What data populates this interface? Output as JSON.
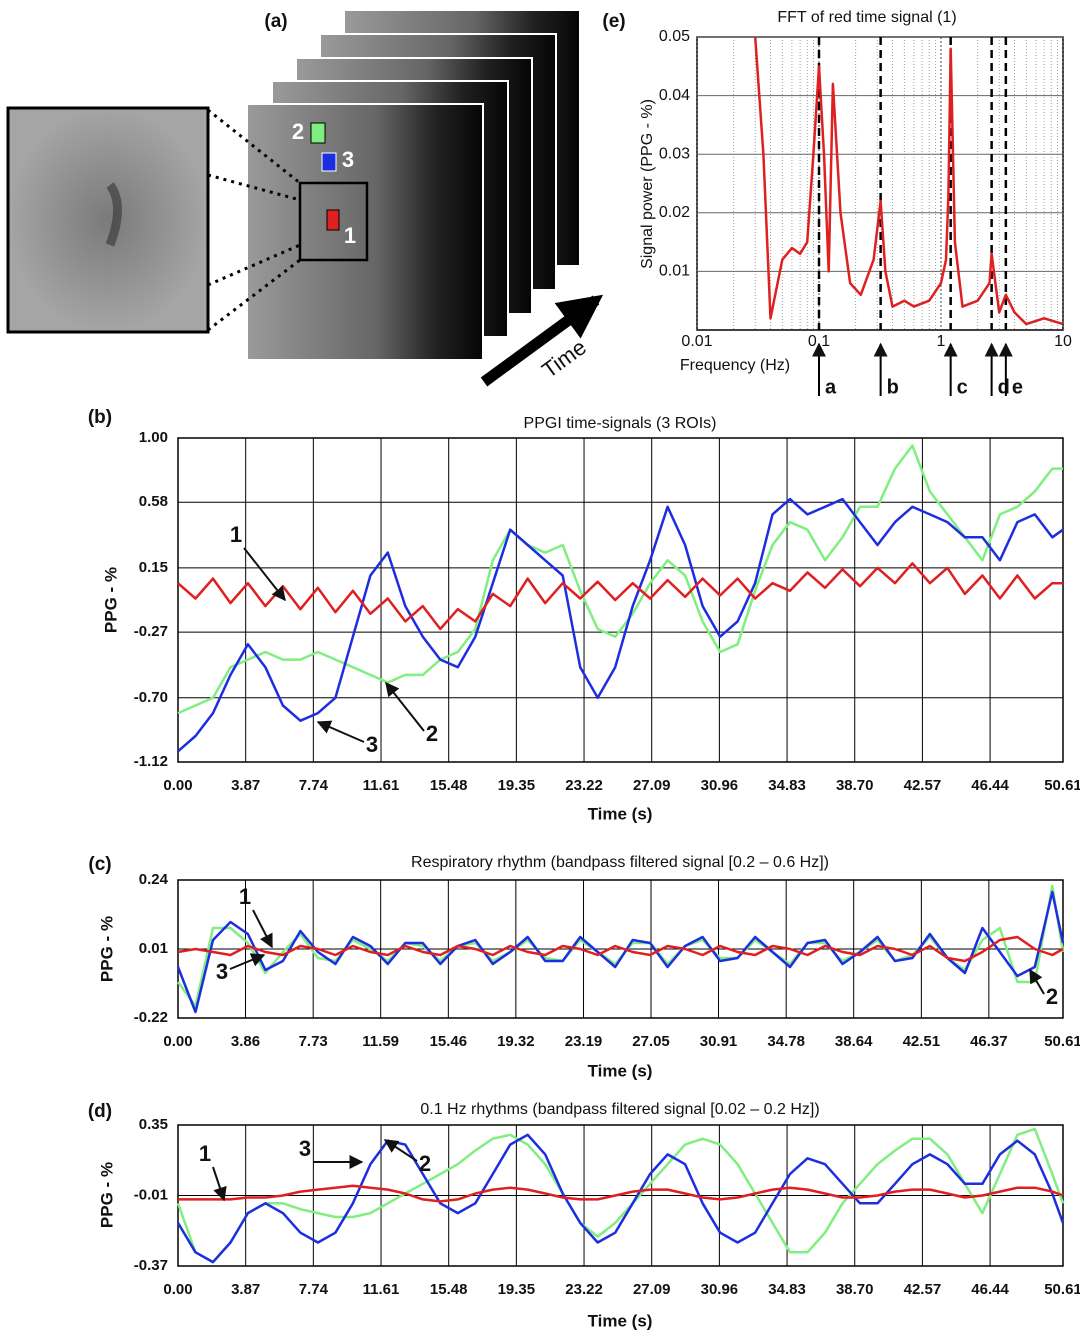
{
  "image_panel": {
    "label": "(a)",
    "roi_labels": [
      "2",
      "3",
      "1"
    ],
    "time_label": "Time"
  },
  "chart_data": [
    {
      "type": "line",
      "panel_label": "(e)",
      "title": "FFT of red time signal (1)",
      "x_label": "Frequency (Hz)",
      "y_label": "Signal power (PPG - %)",
      "log_x": true,
      "grid": true,
      "xlim": [
        0.01,
        10
      ],
      "xticks": [
        0.01,
        0.1,
        1,
        10
      ],
      "ylim": [
        0,
        0.05
      ],
      "yticks": [
        0.01,
        0.02,
        0.03,
        0.04,
        0.05
      ],
      "x": [
        0.03,
        0.035,
        0.04,
        0.05,
        0.06,
        0.07,
        0.08,
        0.09,
        0.1,
        0.11,
        0.12,
        0.13,
        0.15,
        0.18,
        0.22,
        0.28,
        0.32,
        0.35,
        0.4,
        0.5,
        0.6,
        0.8,
        1.0,
        1.1,
        1.15,
        1.2,
        1.3,
        1.5,
        2.0,
        2.5,
        2.6,
        3.0,
        3.4,
        4,
        5,
        7,
        10
      ],
      "series": [
        {
          "name": "1",
          "color": "#e02020",
          "values": [
            0.05,
            0.03,
            0.002,
            0.012,
            0.014,
            0.013,
            0.015,
            0.03,
            0.045,
            0.03,
            0.01,
            0.042,
            0.02,
            0.008,
            0.006,
            0.012,
            0.022,
            0.01,
            0.004,
            0.005,
            0.004,
            0.005,
            0.008,
            0.012,
            0.023,
            0.048,
            0.015,
            0.004,
            0.005,
            0.008,
            0.013,
            0.003,
            0.006,
            0.003,
            0.001,
            0.002,
            0.001
          ]
        }
      ],
      "markers": [
        {
          "label": "a",
          "x": 0.1
        },
        {
          "label": "b",
          "x": 0.32
        },
        {
          "label": "c",
          "x": 1.2
        },
        {
          "label": "d",
          "x": 2.6
        },
        {
          "label": "e",
          "x": 3.4
        }
      ]
    },
    {
      "type": "line",
      "panel_label": "(b)",
      "title": "PPGI time-signals (3 ROIs)",
      "x_label": "Time (s)",
      "y_label": "PPG - %",
      "grid": true,
      "xlim": [
        0,
        50.61
      ],
      "xticks": [
        {
          "value": 0,
          "label": "0.00"
        },
        3.87,
        7.74,
        11.61,
        15.48,
        19.35,
        23.22,
        27.09,
        30.96,
        34.83,
        {
          "value": 38.7,
          "label": "38.70"
        },
        42.57,
        46.44,
        50.61
      ],
      "ylim": [
        -1.12,
        1.0
      ],
      "yticks": [
        -1.12,
        {
          "value": -0.7,
          "label": "-0.70"
        },
        -0.27,
        0.15,
        0.58,
        {
          "value": 1,
          "label": "1.00"
        }
      ],
      "x": [
        0,
        1,
        2,
        3,
        4,
        5,
        6,
        7,
        8,
        9,
        10,
        11,
        12,
        13,
        14,
        15,
        16,
        17,
        18,
        19,
        20,
        21,
        22,
        23,
        24,
        25,
        26,
        27,
        28,
        29,
        30,
        31,
        32,
        33,
        34,
        35,
        36,
        37,
        38,
        39,
        40,
        41,
        42,
        43,
        44,
        45,
        46,
        47,
        48,
        49,
        50,
        50.61
      ],
      "series": [
        {
          "name": "2",
          "color": "#80ee80",
          "values": [
            -0.8,
            -0.75,
            -0.7,
            -0.5,
            -0.45,
            -0.4,
            -0.45,
            -0.45,
            -0.4,
            -0.45,
            -0.5,
            -0.55,
            -0.6,
            -0.55,
            -0.55,
            -0.45,
            -0.4,
            -0.25,
            0.2,
            0.4,
            0.3,
            0.25,
            0.3,
            0.0,
            -0.25,
            -0.3,
            -0.15,
            0.05,
            0.2,
            0.1,
            -0.2,
            -0.4,
            -0.35,
            0.0,
            0.3,
            0.45,
            0.4,
            0.2,
            0.35,
            0.55,
            0.55,
            0.8,
            0.95,
            0.65,
            0.5,
            0.35,
            0.2,
            0.5,
            0.55,
            0.65,
            0.8,
            0.8
          ]
        },
        {
          "name": "3",
          "color": "#1c2ee0",
          "values": [
            -1.05,
            -0.95,
            -0.8,
            -0.55,
            -0.35,
            -0.5,
            -0.75,
            -0.85,
            -0.8,
            -0.7,
            -0.3,
            0.1,
            0.25,
            -0.1,
            -0.3,
            -0.45,
            -0.5,
            -0.3,
            0.05,
            0.4,
            0.3,
            0.2,
            0.1,
            -0.5,
            -0.7,
            -0.5,
            -0.1,
            0.2,
            0.55,
            0.3,
            -0.1,
            -0.3,
            -0.2,
            0.05,
            0.5,
            0.6,
            0.5,
            0.55,
            0.6,
            0.45,
            0.3,
            0.45,
            0.55,
            0.5,
            0.45,
            0.35,
            0.35,
            0.2,
            0.45,
            0.5,
            0.35,
            0.4
          ]
        },
        {
          "name": "1",
          "color": "#e02020",
          "values": [
            0.05,
            -0.05,
            0.08,
            -0.08,
            0.05,
            -0.1,
            0.03,
            -0.12,
            0.02,
            -0.14,
            0.0,
            -0.15,
            -0.05,
            -0.2,
            -0.1,
            -0.25,
            -0.12,
            -0.2,
            -0.02,
            -0.1,
            0.08,
            -0.08,
            0.05,
            -0.05,
            0.06,
            -0.06,
            0.05,
            -0.05,
            0.07,
            -0.04,
            0.08,
            -0.03,
            0.08,
            -0.05,
            0.05,
            0.0,
            0.12,
            0.02,
            0.14,
            0.03,
            0.15,
            0.05,
            0.18,
            0.05,
            0.15,
            -0.02,
            0.1,
            -0.05,
            0.1,
            -0.05,
            0.05,
            0.05
          ]
        }
      ],
      "annotations": [
        "1",
        "2",
        "3"
      ]
    },
    {
      "type": "line",
      "panel_label": "(c)",
      "title": "Respiratory rhythm (bandpass filtered signal [0.2 – 0.6 Hz])",
      "x_label": "Time (s)",
      "y_label": "PPG - %",
      "grid": true,
      "xlim": [
        0,
        50.61
      ],
      "xticks": [
        {
          "value": 0,
          "label": "0.00"
        },
        3.86,
        7.73,
        11.59,
        15.46,
        19.32,
        23.19,
        27.05,
        30.91,
        34.78,
        38.64,
        42.51,
        46.37,
        50.61
      ],
      "ylim": [
        -0.22,
        0.24
      ],
      "yticks": [
        -0.22,
        0.01,
        0.24
      ],
      "x": [
        0,
        1,
        2,
        3,
        4,
        5,
        6,
        7,
        8,
        9,
        10,
        11,
        12,
        13,
        14,
        15,
        16,
        17,
        18,
        19,
        20,
        21,
        22,
        23,
        24,
        25,
        26,
        27,
        28,
        29,
        30,
        31,
        32,
        33,
        34,
        35,
        36,
        37,
        38,
        39,
        40,
        41,
        42,
        43,
        44,
        45,
        46,
        47,
        48,
        49,
        50,
        50.61
      ],
      "series": [
        {
          "name": "2",
          "color": "#80ee80",
          "values": [
            -0.1,
            -0.18,
            0.08,
            0.08,
            0.03,
            -0.07,
            0.0,
            0.06,
            -0.02,
            -0.03,
            0.04,
            0.01,
            -0.03,
            0.03,
            0.02,
            -0.03,
            0.02,
            0.03,
            -0.03,
            0.0,
            0.04,
            -0.02,
            -0.03,
            0.04,
            0.0,
            -0.04,
            0.03,
            0.03,
            -0.04,
            0.02,
            0.04,
            -0.02,
            -0.02,
            0.04,
            0.0,
            -0.04,
            0.03,
            0.03,
            -0.03,
            0.0,
            0.04,
            -0.03,
            -0.01,
            0.05,
            -0.02,
            -0.06,
            0.04,
            0.08,
            -0.1,
            -0.1,
            0.22,
            0.0
          ]
        },
        {
          "name": "3",
          "color": "#1c2ee0",
          "values": [
            -0.05,
            -0.2,
            0.04,
            0.1,
            0.06,
            -0.06,
            -0.03,
            0.07,
            0.0,
            -0.04,
            0.05,
            0.02,
            -0.04,
            0.03,
            0.03,
            -0.04,
            0.02,
            0.04,
            -0.04,
            0.0,
            0.05,
            -0.03,
            -0.03,
            0.05,
            0.0,
            -0.05,
            0.04,
            0.03,
            -0.05,
            0.02,
            0.05,
            -0.03,
            -0.02,
            0.05,
            0.0,
            -0.05,
            0.03,
            0.04,
            -0.04,
            0.0,
            0.05,
            -0.03,
            -0.02,
            0.06,
            -0.02,
            -0.07,
            0.08,
            0.0,
            -0.08,
            -0.05,
            0.2,
            0.03
          ]
        },
        {
          "name": "1",
          "color": "#e02020",
          "values": [
            0.0,
            0.01,
            0.0,
            -0.01,
            0.02,
            0.0,
            -0.01,
            0.02,
            0.01,
            -0.01,
            0.02,
            0.0,
            -0.01,
            0.02,
            0.0,
            -0.01,
            0.02,
            0.01,
            -0.01,
            0.02,
            0.0,
            -0.01,
            0.02,
            0.01,
            -0.01,
            0.02,
            0.0,
            -0.01,
            0.02,
            0.01,
            -0.01,
            0.02,
            0.0,
            -0.01,
            0.02,
            0.01,
            -0.01,
            0.02,
            0.0,
            -0.01,
            0.02,
            0.01,
            -0.01,
            0.02,
            -0.02,
            -0.03,
            0.0,
            0.04,
            0.05,
            0.01,
            -0.01,
            0.01
          ]
        }
      ],
      "annotations": [
        "1",
        "3",
        "2"
      ]
    },
    {
      "type": "line",
      "panel_label": "(d)",
      "title": "0.1 Hz rhythms (bandpass filtered signal [0.02 – 0.2 Hz])",
      "x_label": "Time (s)",
      "y_label": "PPG - %",
      "grid": true,
      "xlim": [
        0,
        50.61
      ],
      "xticks": [
        {
          "value": 0,
          "label": "0.00"
        },
        3.87,
        7.74,
        11.61,
        15.48,
        19.35,
        23.22,
        27.09,
        30.96,
        34.83,
        {
          "value": 38.7,
          "label": "38.70"
        },
        42.57,
        46.44,
        50.61
      ],
      "ylim": [
        -0.37,
        0.35
      ],
      "yticks": [
        -0.37,
        -0.01,
        0.35
      ],
      "x": [
        0,
        1,
        2,
        3,
        4,
        5,
        6,
        7,
        8,
        9,
        10,
        11,
        12,
        13,
        14,
        15,
        16,
        17,
        18,
        19,
        20,
        21,
        22,
        23,
        24,
        25,
        26,
        27,
        28,
        29,
        30,
        31,
        32,
        33,
        34,
        35,
        36,
        37,
        38,
        39,
        40,
        41,
        42,
        43,
        44,
        45,
        46,
        47,
        48,
        49,
        50,
        50.61
      ],
      "series": [
        {
          "name": "2",
          "color": "#80ee80",
          "values": [
            -0.05,
            -0.3,
            -0.35,
            -0.25,
            -0.1,
            -0.05,
            -0.05,
            -0.08,
            -0.1,
            -0.12,
            -0.12,
            -0.1,
            -0.05,
            0.0,
            0.05,
            0.1,
            0.15,
            0.22,
            0.28,
            0.3,
            0.25,
            0.15,
            0.0,
            -0.15,
            -0.22,
            -0.15,
            -0.05,
            0.05,
            0.15,
            0.25,
            0.28,
            0.25,
            0.15,
            0.0,
            -0.15,
            -0.3,
            -0.3,
            -0.2,
            -0.05,
            0.05,
            0.15,
            0.22,
            0.28,
            0.28,
            0.2,
            0.05,
            -0.1,
            0.1,
            0.3,
            0.33,
            0.1,
            -0.05
          ]
        },
        {
          "name": "3",
          "color": "#1c2ee0",
          "values": [
            -0.15,
            -0.3,
            -0.35,
            -0.25,
            -0.1,
            -0.05,
            -0.1,
            -0.2,
            -0.25,
            -0.2,
            -0.05,
            0.15,
            0.27,
            0.25,
            0.1,
            -0.05,
            -0.1,
            -0.05,
            0.1,
            0.25,
            0.3,
            0.2,
            0.0,
            -0.15,
            -0.25,
            -0.2,
            -0.05,
            0.1,
            0.2,
            0.15,
            -0.05,
            -0.2,
            -0.25,
            -0.2,
            -0.05,
            0.1,
            0.18,
            0.15,
            0.05,
            -0.05,
            -0.05,
            0.05,
            0.15,
            0.2,
            0.15,
            0.05,
            0.05,
            0.2,
            0.27,
            0.2,
            0.0,
            -0.15
          ]
        },
        {
          "name": "1",
          "color": "#e02020",
          "values": [
            -0.03,
            -0.03,
            -0.03,
            -0.03,
            -0.02,
            -0.02,
            -0.01,
            0.01,
            0.02,
            0.03,
            0.04,
            0.03,
            0.02,
            0.0,
            -0.03,
            -0.04,
            -0.03,
            0.0,
            0.02,
            0.03,
            0.02,
            0.0,
            -0.02,
            -0.03,
            -0.03,
            -0.01,
            0.01,
            0.02,
            0.02,
            0.0,
            -0.02,
            -0.03,
            -0.02,
            0.0,
            0.02,
            0.03,
            0.02,
            0.0,
            -0.02,
            -0.02,
            -0.01,
            0.01,
            0.02,
            0.02,
            0.0,
            -0.02,
            -0.01,
            0.01,
            0.03,
            0.03,
            0.01,
            -0.01
          ]
        }
      ],
      "annotations": [
        "1",
        "3",
        "2"
      ]
    }
  ]
}
